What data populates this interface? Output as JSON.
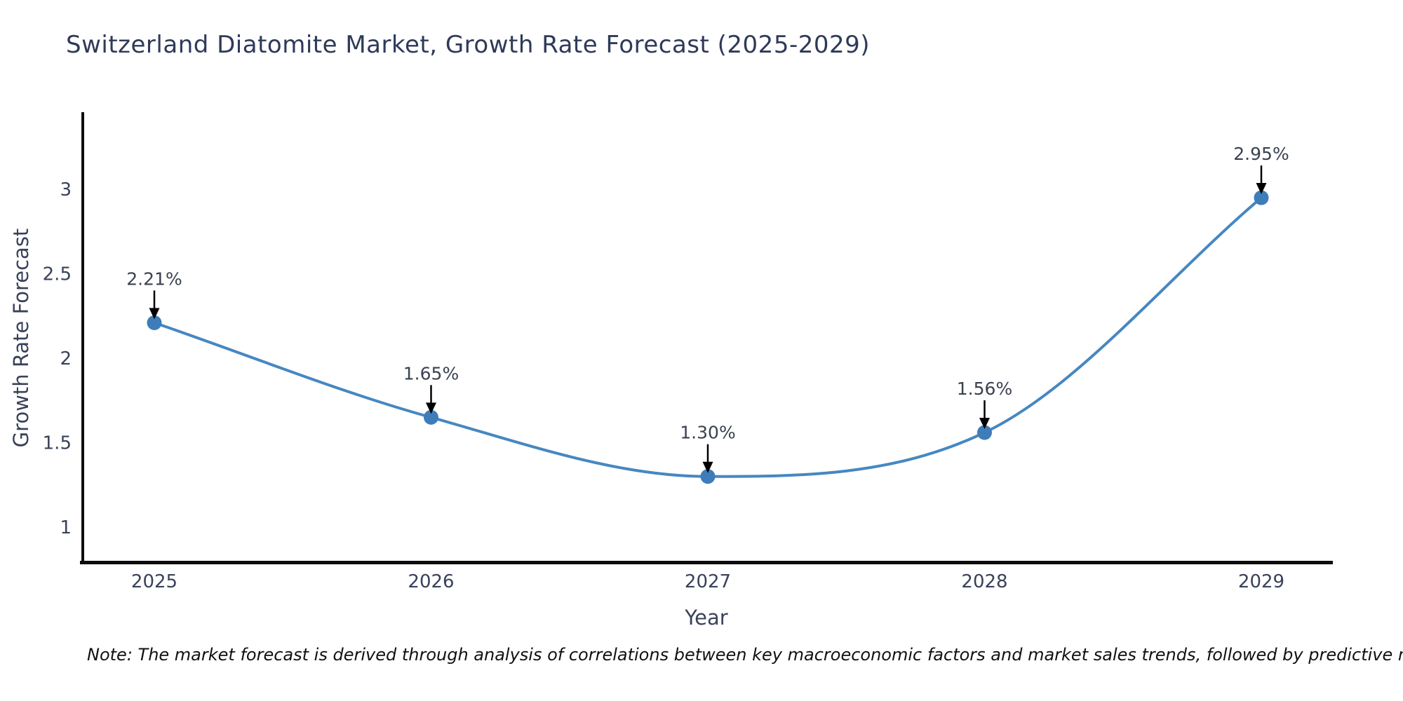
{
  "figure": {
    "note": "Note: The market forecast is derived through analysis of correlations between key macroeconomic factors and market sales trends, followed by predictive modeling to project future sales",
    "colors": {
      "line": "#4687c1",
      "marker": "#3e7db9",
      "title_text": "#2e3a59",
      "tick_text": "#39425a",
      "annotation_text": "#3a4150",
      "arrow": "#000000",
      "axis": "#0d0d0d",
      "note_text": "#111111",
      "background": "#ffffff"
    }
  },
  "chart_data": {
    "type": "line",
    "title": "Switzerland Diatomite Market, Growth Rate Forecast (2025-2029)",
    "xlabel": "Year",
    "ylabel": "Growth Rate Forecast",
    "x": [
      2025,
      2026,
      2027,
      2028,
      2029
    ],
    "values": [
      2.21,
      1.65,
      1.3,
      1.56,
      2.95
    ],
    "point_labels": [
      "2.21%",
      "1.65%",
      "1.30%",
      "1.56%",
      "2.95%"
    ],
    "yticks": [
      1,
      1.5,
      2,
      2.5,
      3
    ],
    "ylim": [
      0.8,
      3.45
    ],
    "grid": false,
    "legend": false,
    "line_shape": "smooth",
    "marker": "circle",
    "annotation_arrows": true
  }
}
